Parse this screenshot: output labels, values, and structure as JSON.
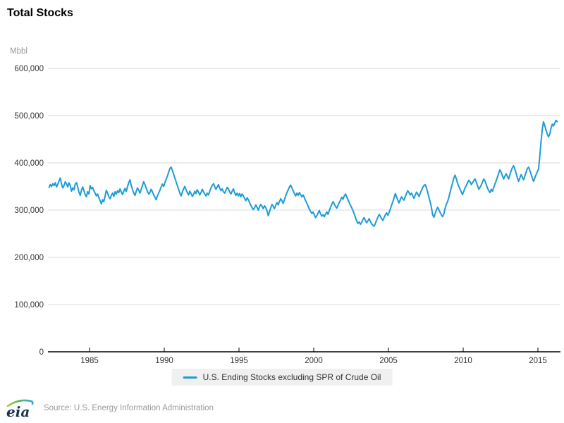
{
  "title": "Total Stocks",
  "y_axis": {
    "unit_label": "Mbbl",
    "tick_labels": [
      "600,000",
      "500,000",
      "400,000",
      "300,000",
      "200,000",
      "100,000",
      "0"
    ],
    "tick_values": [
      600000,
      500000,
      400000,
      300000,
      200000,
      100000,
      0
    ]
  },
  "x_axis": {
    "tick_labels": [
      "1985",
      "1990",
      "1995",
      "2000",
      "2005",
      "2010",
      "2015"
    ],
    "tick_years": [
      1985,
      1990,
      1995,
      2000,
      2005,
      2010,
      2015
    ]
  },
  "legend": {
    "label": "U.S. Ending Stocks excluding SPR of Crude Oil"
  },
  "footer": {
    "logo_text": "eia",
    "source": "Source: U.S. Energy Information Administration"
  },
  "colors": {
    "line": "#1e9cd7",
    "grid": "#d9d9d9",
    "axis": "#000000",
    "tick_text": "#333333",
    "unit_text": "#999999",
    "legend_bg": "#f0f0f0",
    "source_text": "#999999",
    "logo_navy": "#16334f",
    "logo_green": "#a6ce39",
    "logo_blue": "#29aae1"
  },
  "chart_data": {
    "type": "line",
    "title": "Total Stocks",
    "xlabel": "",
    "ylabel": "Mbbl",
    "ylim": [
      0,
      600000
    ],
    "xlim": [
      1982.2,
      2016.6
    ],
    "grid": "horizontal",
    "legend_position": "bottom-center",
    "series": [
      {
        "name": "U.S. Ending Stocks excluding SPR of Crude Oil",
        "frequency": "monthly",
        "start_year": 1982,
        "start_month": 4,
        "values": [
          348000,
          354000,
          350000,
          356000,
          352000,
          358000,
          349000,
          355000,
          362000,
          368000,
          355000,
          347000,
          352000,
          360000,
          356000,
          349000,
          358000,
          352000,
          340000,
          347000,
          343000,
          355000,
          358000,
          349000,
          338000,
          331000,
          342000,
          349000,
          341000,
          333000,
          328000,
          339000,
          334000,
          352000,
          345000,
          348000,
          341000,
          336000,
          330000,
          334000,
          326000,
          320000,
          313000,
          322000,
          318000,
          330000,
          342000,
          336000,
          328000,
          324000,
          331000,
          336000,
          329000,
          339000,
          334000,
          341000,
          337000,
          345000,
          338000,
          333000,
          340000,
          346000,
          339000,
          350000,
          358000,
          364000,
          352000,
          344000,
          336000,
          331000,
          340000,
          347000,
          342000,
          336000,
          344000,
          352000,
          360000,
          354000,
          346000,
          340000,
          334000,
          337000,
          344000,
          339000,
          332000,
          327000,
          322000,
          330000,
          336000,
          342000,
          349000,
          355000,
          350000,
          358000,
          365000,
          372000,
          380000,
          388000,
          391000,
          384000,
          376000,
          368000,
          360000,
          352000,
          344000,
          336000,
          330000,
          338000,
          345000,
          350000,
          343000,
          337000,
          332000,
          340000,
          335000,
          329000,
          333000,
          340000,
          335000,
          343000,
          338000,
          332000,
          337000,
          344000,
          339000,
          334000,
          330000,
          336000,
          332000,
          340000,
          347000,
          352000,
          356000,
          350000,
          344000,
          349000,
          354000,
          347000,
          341000,
          345000,
          339000,
          336000,
          342000,
          348000,
          345000,
          338000,
          334000,
          340000,
          345000,
          337000,
          331000,
          336000,
          330000,
          335000,
          328000,
          334000,
          330000,
          325000,
          320000,
          326000,
          322000,
          316000,
          310000,
          305000,
          301000,
          305000,
          311000,
          306000,
          300000,
          307000,
          312000,
          308000,
          303000,
          309000,
          305000,
          298000,
          288000,
          297000,
          305000,
          312000,
          308000,
          303000,
          310000,
          316000,
          311000,
          318000,
          324000,
          320000,
          314000,
          322000,
          330000,
          337000,
          343000,
          349000,
          353000,
          347000,
          341000,
          335000,
          330000,
          336000,
          331000,
          337000,
          333000,
          328000,
          332000,
          326000,
          320000,
          314000,
          308000,
          302000,
          297000,
          293000,
          296000,
          290000,
          284000,
          288000,
          294000,
          299000,
          292000,
          287000,
          290000,
          286000,
          292000,
          296000,
          291000,
          299000,
          306000,
          312000,
          318000,
          313000,
          308000,
          304000,
          310000,
          316000,
          321000,
          327000,
          323000,
          330000,
          334000,
          328000,
          322000,
          316000,
          310000,
          305000,
          299000,
          292000,
          284000,
          277000,
          272000,
          275000,
          270000,
          274000,
          280000,
          284000,
          278000,
          273000,
          277000,
          282000,
          276000,
          271000,
          268000,
          266000,
          272000,
          279000,
          285000,
          291000,
          287000,
          282000,
          278000,
          284000,
          290000,
          294000,
          289000,
          295000,
          302000,
          310000,
          318000,
          326000,
          335000,
          328000,
          321000,
          315000,
          322000,
          328000,
          324000,
          321000,
          328000,
          335000,
          341000,
          337000,
          332000,
          336000,
          330000,
          325000,
          332000,
          338000,
          334000,
          329000,
          335000,
          342000,
          348000,
          352000,
          354000,
          347000,
          338000,
          327000,
          317000,
          305000,
          290000,
          285000,
          293000,
          300000,
          306000,
          301000,
          295000,
          290000,
          286000,
          292000,
          304000,
          312000,
          318000,
          327000,
          338000,
          348000,
          358000,
          368000,
          374000,
          366000,
          357000,
          350000,
          344000,
          338000,
          333000,
          340000,
          347000,
          352000,
          358000,
          363000,
          360000,
          354000,
          358000,
          362000,
          366000,
          360000,
          352000,
          344000,
          348000,
          353000,
          359000,
          366000,
          362000,
          354000,
          347000,
          341000,
          337000,
          344000,
          340000,
          348000,
          355000,
          362000,
          370000,
          378000,
          385000,
          380000,
          373000,
          366000,
          372000,
          377000,
          371000,
          366000,
          375000,
          383000,
          390000,
          394000,
          387000,
          378000,
          368000,
          361000,
          368000,
          375000,
          370000,
          364000,
          372000,
          380000,
          388000,
          391000,
          384000,
          376000,
          368000,
          361000,
          368000,
          375000,
          381000,
          387000,
          413000,
          444000,
          471000,
          487000,
          479000,
          469000,
          461000,
          455000,
          461000,
          473000,
          482000,
          478000,
          484000,
          490000,
          487000
        ]
      }
    ]
  }
}
